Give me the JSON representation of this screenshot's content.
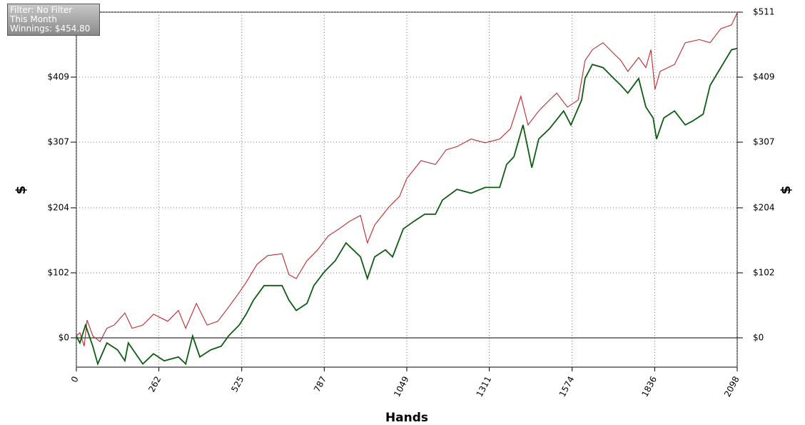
{
  "chart_data": {
    "type": "line",
    "x_label": "Hands",
    "y_label": "$",
    "y2_label": "$",
    "info_box": [
      "Filter: No Filter",
      "This Month",
      "Winnings: $454.80"
    ],
    "xlim": [
      0,
      2098
    ],
    "xticks": [
      0,
      262,
      525,
      787,
      1049,
      1311,
      1574,
      1836,
      2098
    ],
    "ylim": [
      -46,
      511
    ],
    "yticks": [
      {
        "value": 0,
        "label": "$0"
      },
      {
        "value": 102,
        "label": "$102"
      },
      {
        "value": 204,
        "label": "$204"
      },
      {
        "value": 307,
        "label": "$307"
      },
      {
        "value": 409,
        "label": "$409"
      },
      {
        "value": 511,
        "label": "$511"
      }
    ],
    "y2lim": [
      -46,
      511
    ],
    "y2ticks": [
      {
        "value": 0,
        "label": "$0"
      },
      {
        "value": 102,
        "label": "$102"
      },
      {
        "value": 204,
        "label": "$204"
      },
      {
        "value": 307,
        "label": "$307"
      },
      {
        "value": 409,
        "label": "$409"
      },
      {
        "value": 511,
        "label": "$511"
      }
    ],
    "grid": true,
    "series": [
      {
        "color": "#c0272d",
        "x": [
          0,
          11,
          25,
          34,
          52,
          75,
          97,
          120,
          154,
          177,
          211,
          245,
          290,
          324,
          347,
          381,
          415,
          449,
          483,
          517,
          539,
          573,
          607,
          653,
          675,
          698,
          732,
          766,
          800,
          834,
          868,
          902,
          924,
          947,
          992,
          1026,
          1049,
          1094,
          1140,
          1174,
          1208,
          1253,
          1298,
          1344,
          1378,
          1411,
          1434,
          1468,
          1502,
          1525,
          1559,
          1593,
          1615,
          1638,
          1672,
          1706,
          1729,
          1751,
          1785,
          1808,
          1824,
          1837,
          1853,
          1899,
          1933,
          1978,
          2012,
          2046,
          2080,
          2098
        ],
        "values": [
          3,
          8,
          -13,
          28,
          3,
          -6,
          15,
          20,
          39,
          15,
          20,
          37,
          26,
          43,
          15,
          54,
          20,
          26,
          48,
          71,
          87,
          115,
          129,
          132,
          99,
          93,
          121,
          138,
          160,
          171,
          183,
          192,
          149,
          177,
          205,
          222,
          250,
          278,
          272,
          295,
          300,
          312,
          306,
          312,
          328,
          379,
          334,
          356,
          373,
          384,
          362,
          373,
          435,
          452,
          463,
          446,
          435,
          418,
          440,
          424,
          452,
          390,
          418,
          429,
          463,
          468,
          463,
          485,
          491,
          510
        ]
      },
      {
        "color": "#0d5c12",
        "x": [
          0,
          11,
          29,
          52,
          68,
          97,
          131,
          154,
          165,
          211,
          245,
          279,
          324,
          347,
          369,
          392,
          426,
          460,
          483,
          517,
          539,
          562,
          596,
          653,
          675,
          698,
          732,
          754,
          788,
          822,
          856,
          879,
          902,
          924,
          947,
          981,
          1004,
          1038,
          1072,
          1106,
          1140,
          1162,
          1208,
          1253,
          1298,
          1344,
          1366,
          1389,
          1418,
          1446,
          1468,
          1502,
          1547,
          1570,
          1604,
          1615,
          1638,
          1672,
          1706,
          1729,
          1751,
          1785,
          1808,
          1831,
          1842,
          1865,
          1899,
          1933,
          1956,
          1990,
          2012,
          2046,
          2080,
          2098
        ],
        "values": [
          3,
          -8,
          20,
          -13,
          -41,
          -8,
          -19,
          -36,
          -8,
          -41,
          -25,
          -36,
          -30,
          -41,
          3,
          -30,
          -19,
          -13,
          3,
          20,
          37,
          59,
          82,
          82,
          59,
          43,
          54,
          82,
          104,
          121,
          149,
          138,
          127,
          93,
          127,
          138,
          127,
          171,
          183,
          194,
          194,
          216,
          233,
          227,
          236,
          236,
          272,
          284,
          334,
          267,
          312,
          328,
          356,
          334,
          373,
          407,
          429,
          424,
          407,
          396,
          384,
          407,
          362,
          345,
          312,
          345,
          356,
          334,
          340,
          351,
          396,
          424,
          452,
          454
        ]
      }
    ]
  }
}
